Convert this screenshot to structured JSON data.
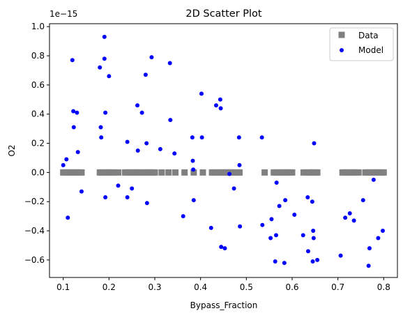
{
  "chart_data": {
    "type": "scatter",
    "title": "2D Scatter Plot",
    "xlabel": "Bypass_Fraction",
    "ylabel": "O2",
    "y_offset_text": "1e−15",
    "xlim": [
      0.07,
      0.83
    ],
    "ylim": [
      -0.72,
      1.02
    ],
    "x_ticks": [
      0.1,
      0.2,
      0.3,
      0.4,
      0.5,
      0.6,
      0.7,
      0.8
    ],
    "x_tick_labels": [
      "0.1",
      "0.2",
      "0.3",
      "0.4",
      "0.5",
      "0.6",
      "0.7",
      "0.8"
    ],
    "y_ticks": [
      -0.6,
      -0.4,
      -0.2,
      0.0,
      0.2,
      0.4,
      0.6,
      0.8,
      1.0
    ],
    "y_tick_labels": [
      "−0.6",
      "−0.4",
      "−0.2",
      "0.0",
      "0.2",
      "0.4",
      "0.6",
      "0.8",
      "1.0"
    ],
    "grid": false,
    "legend_position": "top-right",
    "series": [
      {
        "name": "Data",
        "marker": "square",
        "color": "#808080",
        "x": [
          0.1,
          0.105,
          0.11,
          0.115,
          0.12,
          0.125,
          0.13,
          0.135,
          0.14,
          0.18,
          0.185,
          0.19,
          0.195,
          0.2,
          0.205,
          0.21,
          0.22,
          0.235,
          0.24,
          0.245,
          0.25,
          0.255,
          0.26,
          0.265,
          0.27,
          0.275,
          0.28,
          0.285,
          0.29,
          0.295,
          0.3,
          0.315,
          0.33,
          0.345,
          0.365,
          0.385,
          0.405,
          0.425,
          0.43,
          0.435,
          0.44,
          0.445,
          0.45,
          0.455,
          0.46,
          0.465,
          0.47,
          0.475,
          0.48,
          0.485,
          0.54,
          0.56,
          0.565,
          0.57,
          0.575,
          0.58,
          0.585,
          0.59,
          0.595,
          0.6,
          0.625,
          0.635,
          0.64,
          0.645,
          0.65,
          0.655,
          0.71,
          0.715,
          0.72,
          0.725,
          0.73,
          0.735,
          0.74,
          0.745,
          0.76,
          0.765,
          0.77,
          0.775,
          0.78,
          0.785,
          0.79,
          0.795,
          0.8
        ],
        "y": [
          0,
          0,
          0,
          0,
          0,
          0,
          0,
          0,
          0,
          0,
          0,
          0,
          0,
          0,
          0,
          0,
          0,
          0,
          0,
          0,
          0,
          0,
          0,
          0,
          0,
          0,
          0,
          0,
          0,
          0,
          0,
          0,
          0,
          0,
          0,
          0,
          0,
          0,
          0,
          0,
          0,
          0,
          0,
          0,
          0,
          0,
          0,
          0,
          0,
          0,
          0,
          0,
          0,
          0,
          0,
          0,
          0,
          0,
          0,
          0,
          0,
          0,
          0,
          0,
          0,
          0,
          0,
          0,
          0,
          0,
          0,
          0,
          0,
          0,
          0,
          0,
          0,
          0,
          0,
          0,
          0,
          0,
          0
        ]
      },
      {
        "name": "Model",
        "marker": "circle",
        "color": "#0000ff",
        "x": [
          0.1,
          0.107,
          0.11,
          0.12,
          0.122,
          0.123,
          0.13,
          0.132,
          0.14,
          0.18,
          0.182,
          0.183,
          0.19,
          0.19,
          0.192,
          0.192,
          0.2,
          0.22,
          0.24,
          0.24,
          0.25,
          0.262,
          0.263,
          0.272,
          0.28,
          0.282,
          0.283,
          0.293,
          0.312,
          0.333,
          0.334,
          0.343,
          0.362,
          0.382,
          0.383,
          0.384,
          0.385,
          0.402,
          0.403,
          0.423,
          0.434,
          0.443,
          0.444,
          0.445,
          0.453,
          0.463,
          0.473,
          0.484,
          0.485,
          0.486,
          0.534,
          0.535,
          0.553,
          0.555,
          0.563,
          0.565,
          0.566,
          0.572,
          0.583,
          0.585,
          0.605,
          0.624,
          0.634,
          0.635,
          0.644,
          0.645,
          0.646,
          0.647,
          0.648,
          0.655,
          0.706,
          0.716,
          0.726,
          0.735,
          0.755,
          0.767,
          0.769,
          0.778,
          0.788,
          0.798
        ],
        "y": [
          0.05,
          0.09,
          -0.31,
          0.77,
          0.42,
          0.31,
          0.41,
          0.14,
          -0.13,
          0.72,
          0.31,
          0.24,
          0.93,
          0.78,
          0.41,
          -0.17,
          0.66,
          -0.09,
          0.21,
          -0.17,
          -0.11,
          0.46,
          0.15,
          0.41,
          0.67,
          0.2,
          -0.21,
          0.79,
          0.16,
          0.75,
          0.36,
          0.13,
          -0.3,
          0.24,
          0.08,
          0.02,
          -0.19,
          0.54,
          0.24,
          -0.38,
          0.46,
          0.5,
          0.44,
          -0.51,
          -0.52,
          -0.01,
          -0.11,
          0.24,
          0.05,
          -0.37,
          0.24,
          -0.36,
          -0.45,
          -0.32,
          -0.61,
          -0.43,
          -0.07,
          -0.23,
          -0.62,
          -0.19,
          -0.29,
          -0.43,
          -0.17,
          -0.54,
          -0.2,
          -0.61,
          -0.4,
          -0.45,
          0.2,
          -0.6,
          -0.57,
          -0.31,
          -0.28,
          -0.33,
          -0.19,
          -0.64,
          -0.52,
          -0.05,
          -0.45,
          -0.4
        ]
      }
    ]
  }
}
